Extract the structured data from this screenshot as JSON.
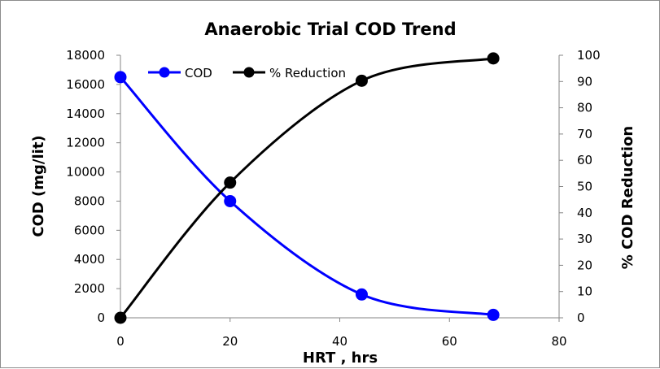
{
  "chart_data": {
    "type": "line",
    "title": "Anaerobic Trial COD Trend",
    "xlabel": "HRT , hrs",
    "ylabel_left": "COD (mg/lit)",
    "ylabel_right": "% COD Reduction",
    "xlim": [
      0,
      80
    ],
    "ylim_left": [
      0,
      18000
    ],
    "ylim_right": [
      0,
      100
    ],
    "x_ticks": [
      "0",
      "20",
      "40",
      "60",
      "80"
    ],
    "y_left_ticks": [
      "0",
      "2000",
      "4000",
      "6000",
      "8000",
      "10000",
      "12000",
      "14000",
      "16000",
      "18000"
    ],
    "y_right_ticks": [
      "0",
      "10",
      "20",
      "30",
      "40",
      "50",
      "60",
      "70",
      "80",
      "90",
      "100"
    ],
    "grid": false,
    "legend_position": "top-left",
    "series": [
      {
        "name": "COD",
        "axis": "left",
        "color": "#0000ff",
        "x": [
          0,
          20,
          44,
          68
        ],
        "y": [
          16500,
          8000,
          1600,
          200
        ]
      },
      {
        "name": "% Reduction",
        "axis": "right",
        "color": "#000000",
        "x": [
          0,
          20,
          44,
          68
        ],
        "y": [
          0,
          51.5,
          90.3,
          98.8
        ]
      }
    ]
  }
}
